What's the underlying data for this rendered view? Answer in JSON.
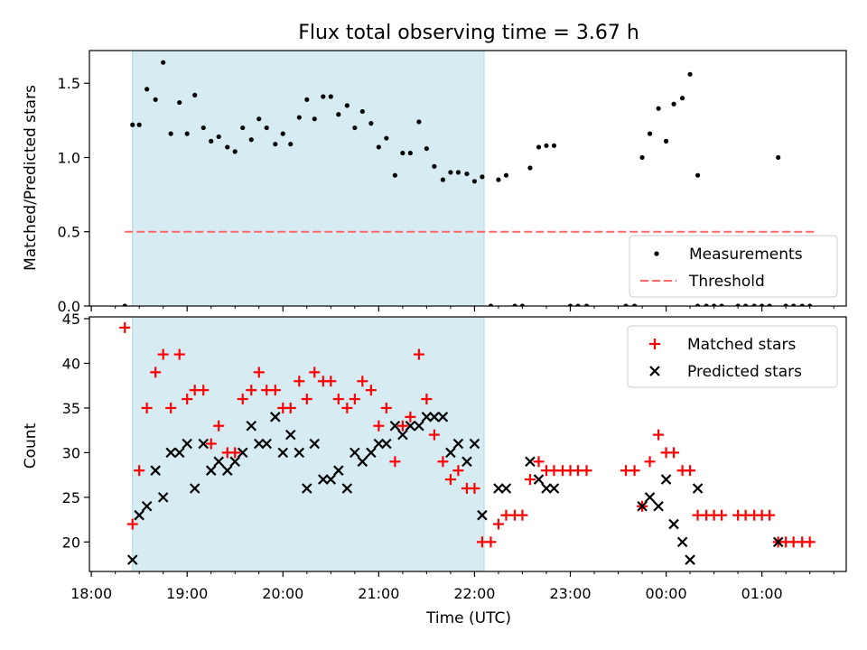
{
  "title": "Flux total observing time = 3.67 h",
  "colors": {
    "shade": "#add8e6",
    "matched": "#ff0000",
    "predicted": "#000000",
    "threshold": "#ff6666",
    "measure": "#000000"
  },
  "x_axis": {
    "label": "Time (UTC)",
    "range_hours": [
      17.98,
      25.88
    ],
    "ticks": [
      {
        "h": 18,
        "label": "18:00"
      },
      {
        "h": 19,
        "label": "19:00"
      },
      {
        "h": 20,
        "label": "20:00"
      },
      {
        "h": 21,
        "label": "21:00"
      },
      {
        "h": 22,
        "label": "22:00"
      },
      {
        "h": 23,
        "label": "23:00"
      },
      {
        "h": 24,
        "label": "00:00"
      },
      {
        "h": 25,
        "label": "01:00"
      }
    ]
  },
  "shaded_span_hours": [
    18.43,
    22.1
  ],
  "chart_data": [
    {
      "type": "scatter",
      "ylabel": "Matched/Predicted stars",
      "ylim": [
        0,
        1.72
      ],
      "yticks": [
        0.0,
        0.5,
        1.0,
        1.5
      ],
      "threshold": {
        "value": 0.5,
        "from": 18.35,
        "to": 25.55,
        "label": "Threshold"
      },
      "legend": {
        "position": "lower-right",
        "entries": [
          "Measurements",
          "Threshold"
        ]
      },
      "series": [
        {
          "name": "Measurements",
          "points": [
            [
              18.35,
              0.0
            ],
            [
              18.43,
              1.22
            ],
            [
              18.5,
              1.22
            ],
            [
              18.58,
              1.46
            ],
            [
              18.67,
              1.39
            ],
            [
              18.75,
              1.64
            ],
            [
              18.83,
              1.16
            ],
            [
              18.92,
              1.37
            ],
            [
              19.0,
              1.16
            ],
            [
              19.08,
              1.42
            ],
            [
              19.17,
              1.2
            ],
            [
              19.25,
              1.11
            ],
            [
              19.33,
              1.14
            ],
            [
              19.42,
              1.07
            ],
            [
              19.5,
              1.04
            ],
            [
              19.58,
              1.2
            ],
            [
              19.67,
              1.12
            ],
            [
              19.75,
              1.26
            ],
            [
              19.83,
              1.2
            ],
            [
              19.92,
              1.09
            ],
            [
              20.0,
              1.16
            ],
            [
              20.08,
              1.09
            ],
            [
              20.17,
              1.27
            ],
            [
              20.25,
              1.39
            ],
            [
              20.33,
              1.26
            ],
            [
              20.42,
              1.41
            ],
            [
              20.5,
              1.41
            ],
            [
              20.58,
              1.29
            ],
            [
              20.67,
              1.35
            ],
            [
              20.75,
              1.2
            ],
            [
              20.83,
              1.31
            ],
            [
              20.92,
              1.23
            ],
            [
              21.0,
              1.07
            ],
            [
              21.08,
              1.13
            ],
            [
              21.17,
              0.88
            ],
            [
              21.25,
              1.03
            ],
            [
              21.33,
              1.03
            ],
            [
              21.42,
              1.24
            ],
            [
              21.5,
              1.06
            ],
            [
              21.58,
              0.94
            ],
            [
              21.67,
              0.85
            ],
            [
              21.75,
              0.9
            ],
            [
              21.83,
              0.9
            ],
            [
              21.92,
              0.89
            ],
            [
              22.0,
              0.84
            ],
            [
              22.08,
              0.87
            ],
            [
              22.17,
              0.0
            ],
            [
              22.25,
              0.85
            ],
            [
              22.33,
              0.88
            ],
            [
              22.42,
              0.0
            ],
            [
              22.5,
              0.0
            ],
            [
              22.58,
              0.93
            ],
            [
              22.67,
              1.07
            ],
            [
              22.75,
              1.08
            ],
            [
              22.83,
              1.08
            ],
            [
              23.0,
              0.0
            ],
            [
              23.08,
              0.0
            ],
            [
              23.17,
              0.0
            ],
            [
              23.58,
              0.0
            ],
            [
              23.67,
              0.0
            ],
            [
              23.75,
              1.0
            ],
            [
              23.83,
              1.16
            ],
            [
              23.92,
              1.33
            ],
            [
              24.0,
              1.11
            ],
            [
              24.08,
              1.36
            ],
            [
              24.17,
              1.4
            ],
            [
              24.25,
              1.56
            ],
            [
              24.33,
              0.88
            ],
            [
              24.33,
              0.0
            ],
            [
              24.42,
              0.0
            ],
            [
              24.5,
              0.0
            ],
            [
              24.58,
              0.0
            ],
            [
              24.75,
              0.0
            ],
            [
              24.83,
              0.0
            ],
            [
              24.92,
              0.0
            ],
            [
              25.0,
              0.0
            ],
            [
              25.08,
              0.0
            ],
            [
              25.17,
              1.0
            ],
            [
              25.25,
              0.0
            ],
            [
              25.33,
              0.0
            ],
            [
              25.42,
              0.0
            ],
            [
              25.5,
              0.0
            ]
          ]
        }
      ]
    },
    {
      "type": "scatter",
      "xlabel": "Time (UTC)",
      "ylabel": "Count",
      "ylim": [
        16.7,
        45.2
      ],
      "yticks": [
        20,
        25,
        30,
        35,
        40,
        45
      ],
      "legend": {
        "position": "top-right",
        "entries": [
          "Matched stars",
          "Predicted stars"
        ]
      },
      "series": [
        {
          "name": "Matched stars",
          "marker": "plus",
          "points": [
            [
              18.35,
              44
            ],
            [
              18.43,
              22
            ],
            [
              18.5,
              28
            ],
            [
              18.58,
              35
            ],
            [
              18.67,
              39
            ],
            [
              18.75,
              41
            ],
            [
              18.83,
              35
            ],
            [
              18.92,
              41
            ],
            [
              19.0,
              36
            ],
            [
              19.08,
              37
            ],
            [
              19.17,
              37
            ],
            [
              19.25,
              31
            ],
            [
              19.33,
              33
            ],
            [
              19.42,
              30
            ],
            [
              19.5,
              30
            ],
            [
              19.58,
              36
            ],
            [
              19.67,
              37
            ],
            [
              19.75,
              39
            ],
            [
              19.83,
              37
            ],
            [
              19.92,
              37
            ],
            [
              20.0,
              35
            ],
            [
              20.08,
              35
            ],
            [
              20.17,
              38
            ],
            [
              20.25,
              36
            ],
            [
              20.33,
              39
            ],
            [
              20.42,
              38
            ],
            [
              20.5,
              38
            ],
            [
              20.58,
              36
            ],
            [
              20.67,
              35
            ],
            [
              20.75,
              36
            ],
            [
              20.83,
              38
            ],
            [
              20.92,
              37
            ],
            [
              21.0,
              33
            ],
            [
              21.08,
              35
            ],
            [
              21.17,
              29
            ],
            [
              21.25,
              33
            ],
            [
              21.33,
              34
            ],
            [
              21.42,
              41
            ],
            [
              21.5,
              36
            ],
            [
              21.58,
              32
            ],
            [
              21.67,
              29
            ],
            [
              21.75,
              27
            ],
            [
              21.83,
              28
            ],
            [
              21.92,
              26
            ],
            [
              22.0,
              26
            ],
            [
              22.08,
              20
            ],
            [
              22.17,
              20
            ],
            [
              22.25,
              22
            ],
            [
              22.33,
              23
            ],
            [
              22.42,
              23
            ],
            [
              22.5,
              23
            ],
            [
              22.58,
              27
            ],
            [
              22.67,
              29
            ],
            [
              22.75,
              28
            ],
            [
              22.83,
              28
            ],
            [
              22.92,
              28
            ],
            [
              23.0,
              28
            ],
            [
              23.08,
              28
            ],
            [
              23.17,
              28
            ],
            [
              23.58,
              28
            ],
            [
              23.67,
              28
            ],
            [
              23.75,
              24
            ],
            [
              23.83,
              29
            ],
            [
              23.92,
              32
            ],
            [
              24.0,
              30
            ],
            [
              24.08,
              30
            ],
            [
              24.17,
              28
            ],
            [
              24.25,
              28
            ],
            [
              24.33,
              23
            ],
            [
              24.42,
              23
            ],
            [
              24.5,
              23
            ],
            [
              24.58,
              23
            ],
            [
              24.75,
              23
            ],
            [
              24.83,
              23
            ],
            [
              24.92,
              23
            ],
            [
              25.0,
              23
            ],
            [
              25.08,
              23
            ],
            [
              25.17,
              20
            ],
            [
              25.25,
              20
            ],
            [
              25.33,
              20
            ],
            [
              25.42,
              20
            ],
            [
              25.5,
              20
            ]
          ]
        },
        {
          "name": "Predicted stars",
          "marker": "x",
          "points": [
            [
              18.43,
              18
            ],
            [
              18.5,
              23
            ],
            [
              18.58,
              24
            ],
            [
              18.67,
              28
            ],
            [
              18.75,
              25
            ],
            [
              18.83,
              30
            ],
            [
              18.92,
              30
            ],
            [
              19.0,
              31
            ],
            [
              19.08,
              26
            ],
            [
              19.17,
              31
            ],
            [
              19.25,
              28
            ],
            [
              19.33,
              29
            ],
            [
              19.42,
              28
            ],
            [
              19.5,
              29
            ],
            [
              19.58,
              30
            ],
            [
              19.67,
              33
            ],
            [
              19.75,
              31
            ],
            [
              19.83,
              31
            ],
            [
              19.92,
              34
            ],
            [
              20.0,
              30
            ],
            [
              20.08,
              32
            ],
            [
              20.17,
              30
            ],
            [
              20.25,
              26
            ],
            [
              20.33,
              31
            ],
            [
              20.42,
              27
            ],
            [
              20.5,
              27
            ],
            [
              20.58,
              28
            ],
            [
              20.67,
              26
            ],
            [
              20.75,
              30
            ],
            [
              20.83,
              29
            ],
            [
              20.92,
              30
            ],
            [
              21.0,
              31
            ],
            [
              21.08,
              31
            ],
            [
              21.17,
              33
            ],
            [
              21.25,
              32
            ],
            [
              21.33,
              33
            ],
            [
              21.42,
              33
            ],
            [
              21.5,
              34
            ],
            [
              21.58,
              34
            ],
            [
              21.67,
              34
            ],
            [
              21.75,
              30
            ],
            [
              21.83,
              31
            ],
            [
              21.92,
              29
            ],
            [
              22.0,
              31
            ],
            [
              22.08,
              23
            ],
            [
              22.25,
              26
            ],
            [
              22.33,
              26
            ],
            [
              22.58,
              29
            ],
            [
              22.67,
              27
            ],
            [
              22.75,
              26
            ],
            [
              22.83,
              26
            ],
            [
              23.75,
              24
            ],
            [
              23.83,
              25
            ],
            [
              23.92,
              24
            ],
            [
              24.0,
              27
            ],
            [
              24.08,
              22
            ],
            [
              24.17,
              20
            ],
            [
              24.25,
              18
            ],
            [
              24.33,
              26
            ],
            [
              25.17,
              20
            ]
          ]
        }
      ]
    }
  ]
}
